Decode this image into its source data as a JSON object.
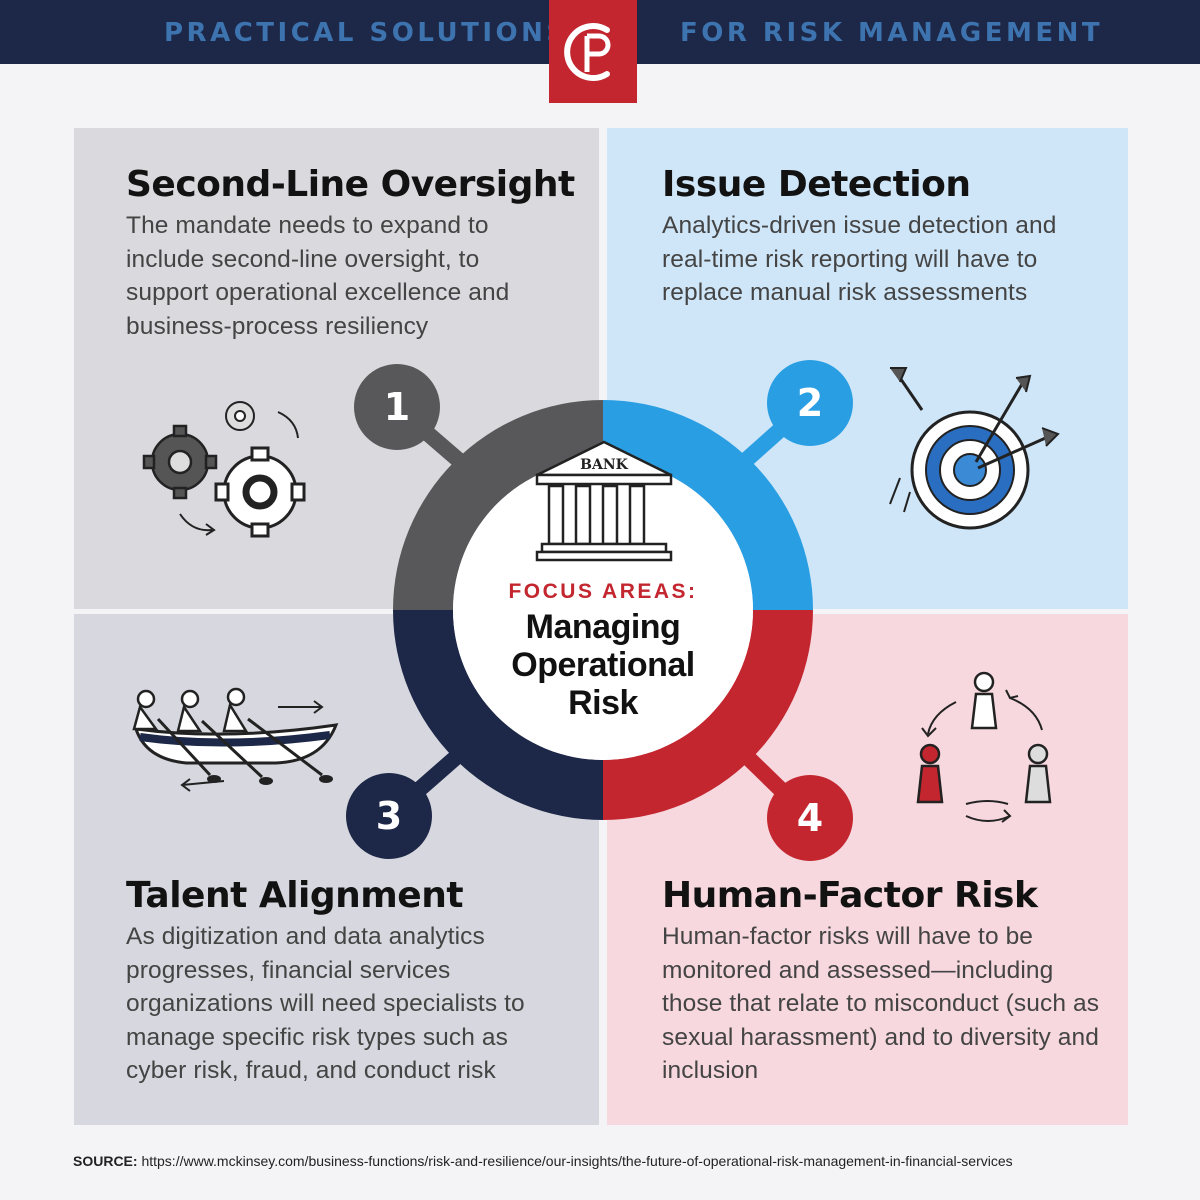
{
  "header": {
    "left_text": "PRACTICAL SOLUTIONS",
    "right_text": "FOR RISK MANAGEMENT",
    "logo_text": "CP",
    "bar_color": "#1d2747",
    "accent_color": "#c3262f"
  },
  "center": {
    "bank_label": "BANK",
    "focus_label": "FOCUS AREAS:",
    "title_lines": [
      "Managing",
      "Operational",
      "Risk"
    ]
  },
  "quadrants": [
    {
      "number": "1",
      "title": "Second-Line Oversight",
      "body": "The mandate needs to expand to include second-line oversight, to support operational excellence and business-process resiliency",
      "color": "#58585a",
      "icon": "gears-icon"
    },
    {
      "number": "2",
      "title": "Issue Detection",
      "body": "Analytics-driven issue detection and real-time risk reporting will have to replace manual risk assessments",
      "color": "#2a9ee3",
      "icon": "target-icon"
    },
    {
      "number": "3",
      "title": "Talent Alignment",
      "body": "As digitization and data analytics progresses, financial services organizations will need specialists to manage specific risk types such as cyber risk, fraud, and conduct risk",
      "color": "#1d2747",
      "icon": "rowing-team-icon"
    },
    {
      "number": "4",
      "title": "Human-Factor Risk",
      "body": "Human-factor risks will have to be monitored and assessed—including those that relate to misconduct (such as sexual harassment) and to diversity and inclusion",
      "color": "#c3262f",
      "icon": "people-cycle-icon"
    }
  ],
  "footer": {
    "source_label": "SOURCE:",
    "source_url": "https://www.mckinsey.com/business-functions/risk-and-resilience/our-insights/the-future-of-operational-risk-management-in-financial-services"
  }
}
